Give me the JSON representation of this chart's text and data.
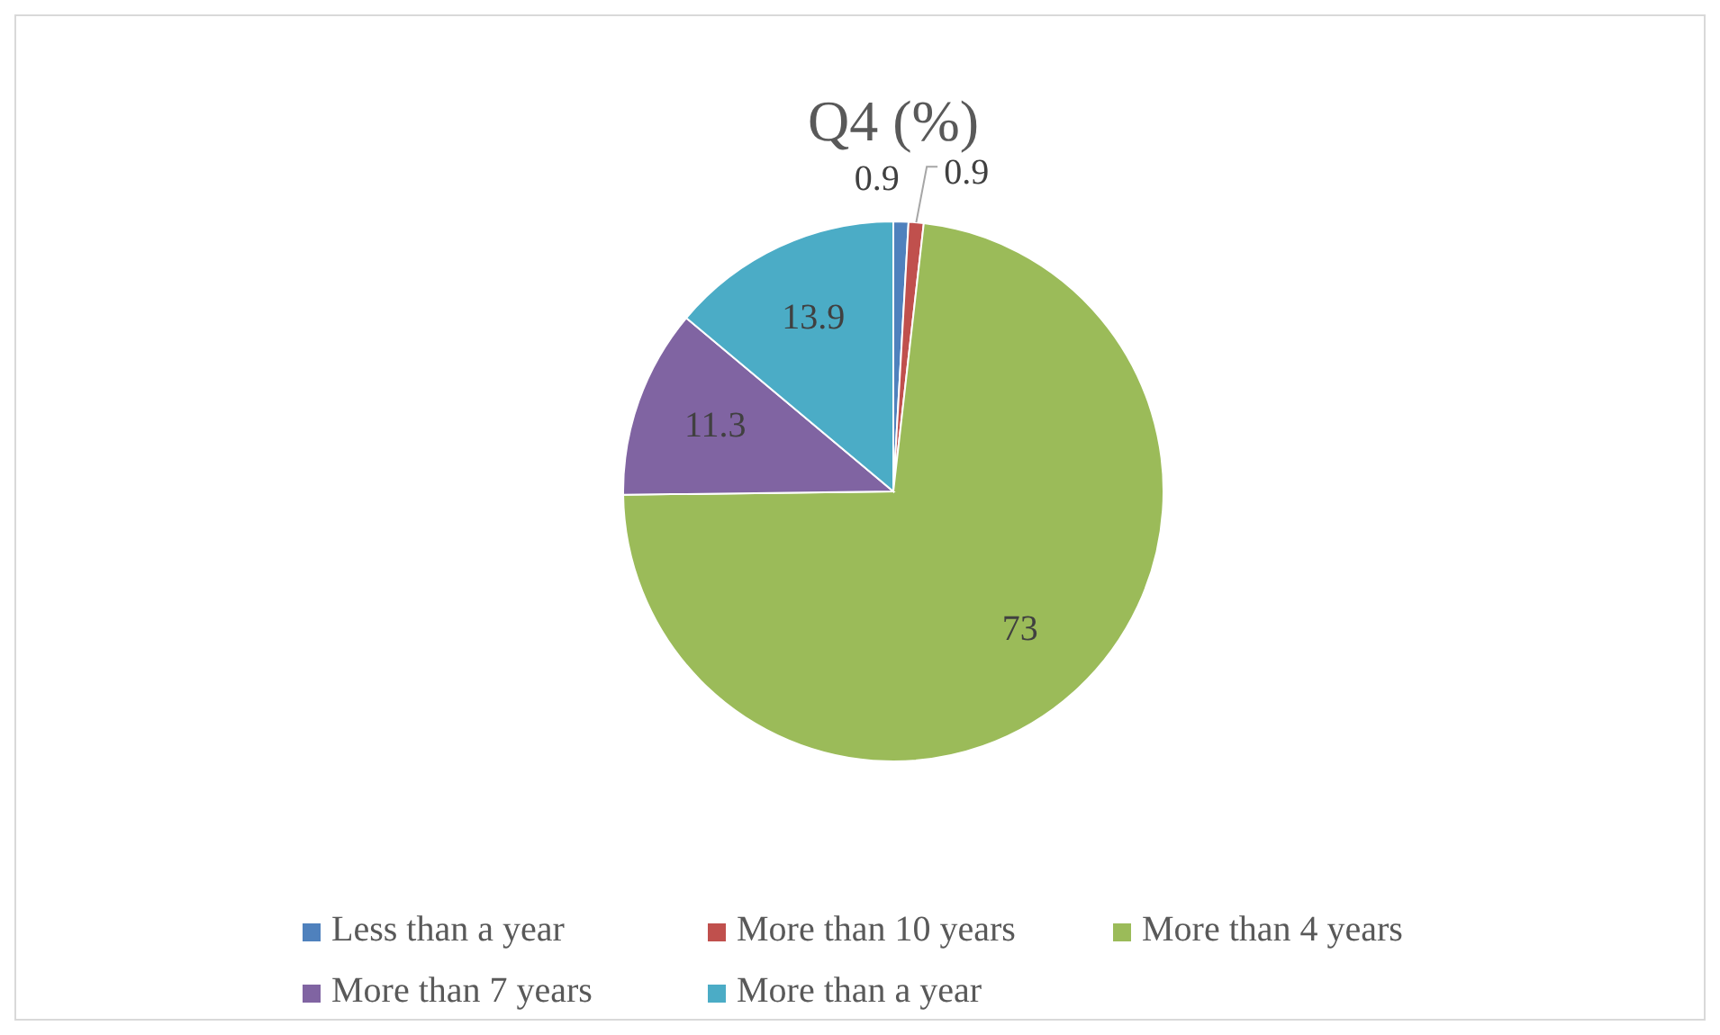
{
  "chart_data": {
    "type": "pie",
    "title": "Q4 (%)",
    "categories": [
      "Less than a year",
      "More than 10 years",
      "More than 4 years",
      "More than 7 years",
      "More than a year"
    ],
    "values": [
      0.9,
      0.9,
      73,
      11.3,
      13.9
    ],
    "colors": [
      "#4f81bd",
      "#c0504d",
      "#9bbb59",
      "#8064a2",
      "#4bacc6"
    ],
    "data_labels": true,
    "legend": "bottom"
  }
}
